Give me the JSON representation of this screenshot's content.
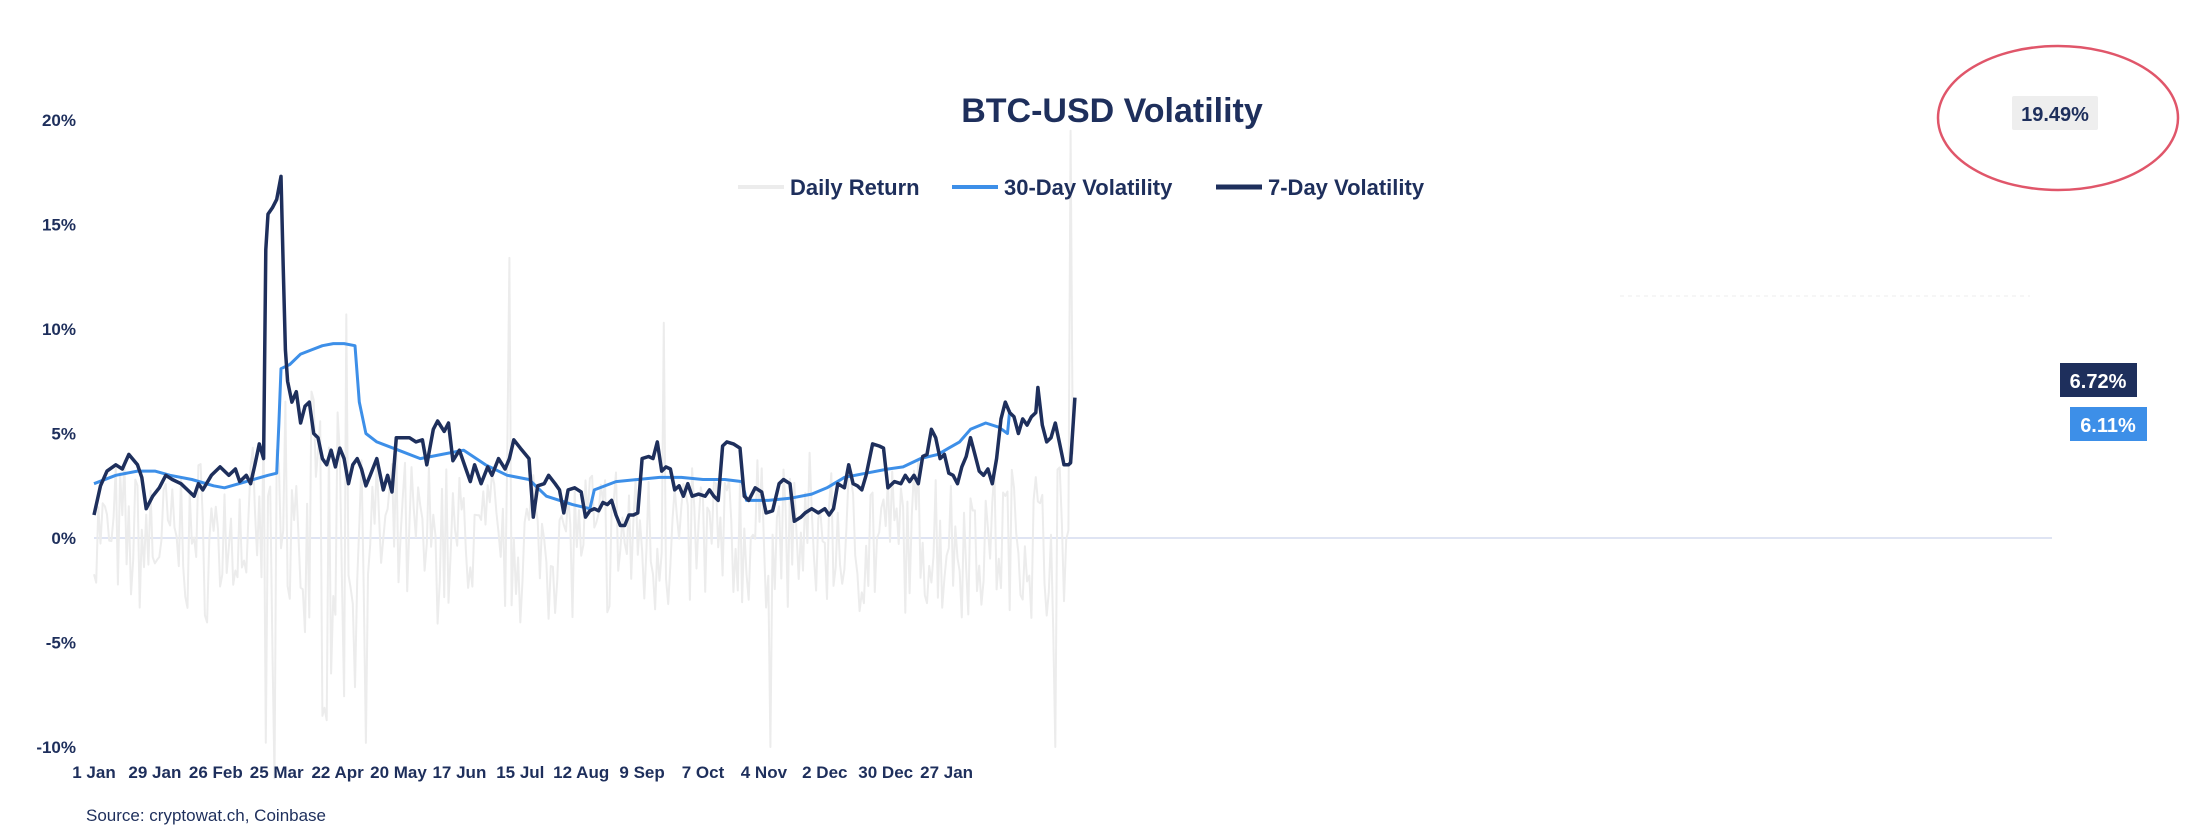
{
  "chart_data": {
    "type": "line",
    "title": "BTC-USD Volatility",
    "source": "Source: cryptowat.ch, Coinbase",
    "y_ticks": [
      "20%",
      "15%",
      "10%",
      "5%",
      "0%",
      "-5%",
      "-10%"
    ],
    "ylim": [
      -10,
      20
    ],
    "x_ticks": [
      "1 Jan",
      "29 Jan",
      "26 Feb",
      "25 Mar",
      "22 Apr",
      "20 May",
      "17 Jun",
      "15 Jul",
      "12 Aug",
      "9 Sep",
      "7 Oct",
      "4 Nov",
      "2 Dec",
      "30 Dec",
      "27 Jan"
    ],
    "legend": {
      "position": "top-center",
      "items": [
        "Daily Return",
        "30-Day Volatility",
        "7-Day Volatility"
      ]
    },
    "colors": {
      "daily_return": "#ececec",
      "vol30": "#3d8fe8",
      "vol7": "#1e2f5c",
      "zero_line": "#dfe4f3",
      "highlight_circle": "#e0566a",
      "peak_label_bg": "#eeeeee"
    },
    "annotations": {
      "peak_return": "19.49%",
      "last_vol7": "6.72%",
      "last_vol30": "6.11%"
    },
    "series": [
      {
        "name": "30-Day Volatility",
        "points": [
          [
            0,
            2.6
          ],
          [
            10,
            3.0
          ],
          [
            20,
            3.2
          ],
          [
            28,
            3.2
          ],
          [
            35,
            3.0
          ],
          [
            45,
            2.8
          ],
          [
            55,
            2.5
          ],
          [
            60,
            2.4
          ],
          [
            70,
            2.7
          ],
          [
            80,
            3.0
          ],
          [
            84,
            3.1
          ],
          [
            85,
            5.5
          ],
          [
            86,
            8.1
          ],
          [
            90,
            8.3
          ],
          [
            95,
            8.8
          ],
          [
            100,
            9.0
          ],
          [
            105,
            9.2
          ],
          [
            110,
            9.3
          ],
          [
            115,
            9.3
          ],
          [
            120,
            9.2
          ],
          [
            122,
            6.5
          ],
          [
            125,
            5.0
          ],
          [
            130,
            4.6
          ],
          [
            140,
            4.2
          ],
          [
            150,
            3.8
          ],
          [
            160,
            4.0
          ],
          [
            170,
            4.2
          ],
          [
            180,
            3.5
          ],
          [
            190,
            3.0
          ],
          [
            200,
            2.8
          ],
          [
            208,
            2.0
          ],
          [
            220,
            1.6
          ],
          [
            228,
            1.4
          ],
          [
            230,
            2.3
          ],
          [
            240,
            2.7
          ],
          [
            250,
            2.8
          ],
          [
            260,
            2.9
          ],
          [
            270,
            2.9
          ],
          [
            280,
            2.8
          ],
          [
            290,
            2.8
          ],
          [
            298,
            2.7
          ],
          [
            300,
            1.8
          ],
          [
            305,
            1.8
          ],
          [
            310,
            1.8
          ],
          [
            320,
            1.9
          ],
          [
            330,
            2.1
          ],
          [
            337,
            2.4
          ],
          [
            345,
            2.9
          ],
          [
            355,
            3.1
          ],
          [
            365,
            3.3
          ],
          [
            372,
            3.4
          ],
          [
            380,
            3.8
          ],
          [
            388,
            4.0
          ],
          [
            393,
            4.3
          ],
          [
            398,
            4.6
          ],
          [
            403,
            5.2
          ],
          [
            410,
            5.5
          ],
          [
            416,
            5.3
          ],
          [
            420,
            5.0
          ],
          [
            421,
            6.11
          ]
        ]
      },
      {
        "name": "7-Day Volatility",
        "points": [
          [
            0,
            1.1
          ],
          [
            3,
            2.5
          ],
          [
            6,
            3.2
          ],
          [
            10,
            3.5
          ],
          [
            13,
            3.3
          ],
          [
            16,
            4.0
          ],
          [
            20,
            3.5
          ],
          [
            22,
            2.9
          ],
          [
            24,
            1.4
          ],
          [
            27,
            2.0
          ],
          [
            30,
            2.4
          ],
          [
            33,
            3.0
          ],
          [
            36,
            2.8
          ],
          [
            40,
            2.6
          ],
          [
            43,
            2.3
          ],
          [
            46,
            2.0
          ],
          [
            48,
            2.6
          ],
          [
            50,
            2.3
          ],
          [
            54,
            3.0
          ],
          [
            58,
            3.4
          ],
          [
            62,
            3.0
          ],
          [
            65,
            3.3
          ],
          [
            67,
            2.7
          ],
          [
            70,
            3.0
          ],
          [
            72,
            2.6
          ],
          [
            74,
            3.5
          ],
          [
            76,
            4.5
          ],
          [
            78,
            3.8
          ],
          [
            79,
            13.8
          ],
          [
            80,
            15.5
          ],
          [
            82,
            15.8
          ],
          [
            84,
            16.2
          ],
          [
            86,
            17.3
          ],
          [
            87,
            13.0
          ],
          [
            88,
            9.0
          ],
          [
            89,
            7.5
          ],
          [
            91,
            6.5
          ],
          [
            93,
            7.0
          ],
          [
            95,
            5.5
          ],
          [
            97,
            6.3
          ],
          [
            99,
            6.5
          ],
          [
            101,
            5.0
          ],
          [
            103,
            4.8
          ],
          [
            105,
            3.8
          ],
          [
            107,
            3.5
          ],
          [
            109,
            4.2
          ],
          [
            111,
            3.4
          ],
          [
            113,
            4.3
          ],
          [
            115,
            3.8
          ],
          [
            117,
            2.6
          ],
          [
            119,
            3.5
          ],
          [
            121,
            3.8
          ],
          [
            123,
            3.3
          ],
          [
            125,
            2.5
          ],
          [
            127,
            3.0
          ],
          [
            130,
            3.8
          ],
          [
            133,
            2.3
          ],
          [
            135,
            3.0
          ],
          [
            137,
            2.2
          ],
          [
            139,
            4.8
          ],
          [
            142,
            4.8
          ],
          [
            145,
            4.8
          ],
          [
            148,
            4.6
          ],
          [
            151,
            4.7
          ],
          [
            153,
            3.5
          ],
          [
            156,
            5.2
          ],
          [
            158,
            5.6
          ],
          [
            161,
            5.1
          ],
          [
            163,
            5.5
          ],
          [
            165,
            3.7
          ],
          [
            168,
            4.2
          ],
          [
            171,
            3.3
          ],
          [
            173,
            2.7
          ],
          [
            175,
            3.5
          ],
          [
            178,
            2.6
          ],
          [
            181,
            3.4
          ],
          [
            183,
            3.0
          ],
          [
            186,
            3.8
          ],
          [
            189,
            3.3
          ],
          [
            191,
            3.8
          ],
          [
            193,
            4.7
          ],
          [
            196,
            4.3
          ],
          [
            200,
            3.8
          ],
          [
            202,
            1.0
          ],
          [
            204,
            2.5
          ],
          [
            207,
            2.6
          ],
          [
            209,
            3.0
          ],
          [
            212,
            2.6
          ],
          [
            214,
            2.3
          ],
          [
            216,
            1.2
          ],
          [
            218,
            2.3
          ],
          [
            221,
            2.4
          ],
          [
            224,
            2.2
          ],
          [
            226,
            1.0
          ],
          [
            228,
            1.3
          ],
          [
            230,
            1.4
          ],
          [
            232,
            1.3
          ],
          [
            234,
            1.7
          ],
          [
            236,
            1.6
          ],
          [
            238,
            1.8
          ],
          [
            240,
            1.1
          ],
          [
            242,
            0.6
          ],
          [
            244,
            0.6
          ],
          [
            246,
            1.1
          ],
          [
            248,
            1.1
          ],
          [
            250,
            1.2
          ],
          [
            252,
            3.8
          ],
          [
            255,
            3.9
          ],
          [
            257,
            3.8
          ],
          [
            259,
            4.6
          ],
          [
            261,
            3.2
          ],
          [
            263,
            3.4
          ],
          [
            265,
            3.3
          ],
          [
            267,
            2.3
          ],
          [
            269,
            2.5
          ],
          [
            271,
            2.0
          ],
          [
            273,
            2.6
          ],
          [
            275,
            2.0
          ],
          [
            278,
            2.1
          ],
          [
            281,
            2.0
          ],
          [
            283,
            2.3
          ],
          [
            285,
            2.0
          ],
          [
            287,
            1.8
          ],
          [
            289,
            4.4
          ],
          [
            291,
            4.6
          ],
          [
            294,
            4.5
          ],
          [
            297,
            4.3
          ],
          [
            299,
            2.0
          ],
          [
            301,
            1.8
          ],
          [
            304,
            2.4
          ],
          [
            307,
            2.2
          ],
          [
            309,
            1.2
          ],
          [
            312,
            1.3
          ],
          [
            315,
            2.6
          ],
          [
            317,
            2.8
          ],
          [
            320,
            2.6
          ],
          [
            322,
            0.8
          ],
          [
            325,
            1.0
          ],
          [
            327,
            1.2
          ],
          [
            330,
            1.4
          ],
          [
            333,
            1.2
          ],
          [
            336,
            1.4
          ],
          [
            338,
            1.1
          ],
          [
            340,
            1.4
          ],
          [
            342,
            2.6
          ],
          [
            345,
            2.4
          ],
          [
            347,
            3.5
          ],
          [
            349,
            2.6
          ],
          [
            351,
            2.5
          ],
          [
            353,
            2.3
          ],
          [
            355,
            3.0
          ],
          [
            358,
            4.5
          ],
          [
            361,
            4.4
          ],
          [
            363,
            4.3
          ],
          [
            365,
            2.4
          ],
          [
            368,
            2.7
          ],
          [
            371,
            2.6
          ],
          [
            373,
            3.0
          ],
          [
            375,
            2.7
          ],
          [
            377,
            3.0
          ],
          [
            379,
            2.6
          ],
          [
            381,
            3.9
          ],
          [
            383,
            4.0
          ],
          [
            385,
            5.2
          ],
          [
            387,
            4.8
          ],
          [
            389,
            3.8
          ],
          [
            391,
            4.0
          ],
          [
            393,
            3.1
          ],
          [
            395,
            3.0
          ],
          [
            397,
            2.6
          ],
          [
            399,
            3.4
          ],
          [
            401,
            3.9
          ],
          [
            403,
            4.8
          ],
          [
            405,
            4.0
          ],
          [
            407,
            3.2
          ],
          [
            409,
            3.0
          ],
          [
            411,
            3.3
          ],
          [
            413,
            2.6
          ],
          [
            415,
            3.8
          ],
          [
            417,
            5.7
          ],
          [
            419,
            6.5
          ],
          [
            421,
            6.0
          ],
          [
            423,
            5.8
          ],
          [
            425,
            5.0
          ],
          [
            427,
            5.7
          ],
          [
            429,
            5.4
          ],
          [
            431,
            5.8
          ],
          [
            433,
            6.0
          ],
          [
            434,
            7.2
          ],
          [
            436,
            5.4
          ],
          [
            438,
            4.6
          ],
          [
            440,
            4.8
          ],
          [
            442,
            5.5
          ],
          [
            444,
            4.5
          ],
          [
            446,
            3.5
          ],
          [
            448,
            3.5
          ],
          [
            449,
            3.6
          ],
          [
            451,
            6.72
          ]
        ]
      }
    ]
  }
}
